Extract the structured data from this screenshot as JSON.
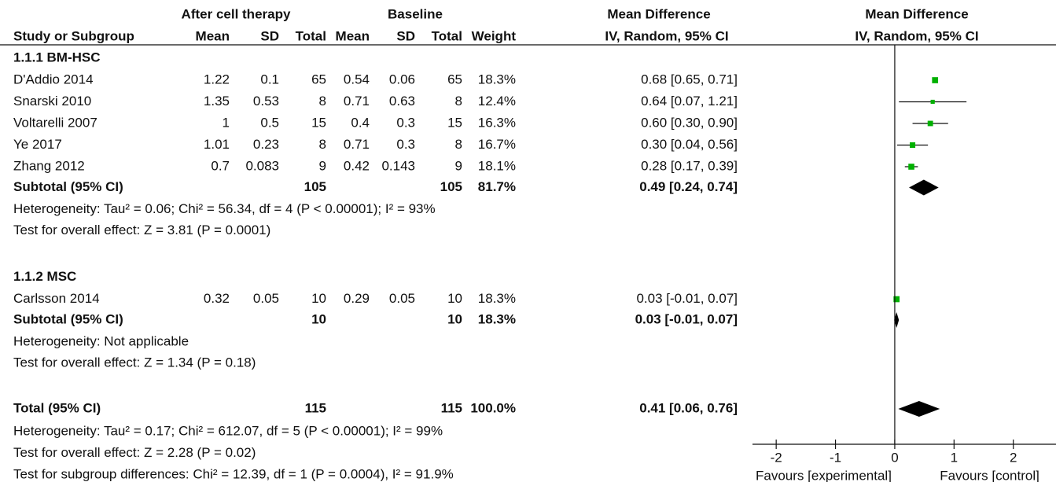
{
  "chart_data": {
    "type": "forest",
    "header_groups": [
      "After cell therapy",
      "Baseline",
      "Mean Difference",
      "Mean Difference"
    ],
    "columns": [
      "Study or Subgroup",
      "Mean",
      "SD",
      "Total",
      "Mean",
      "SD",
      "Total",
      "Weight",
      "IV, Random, 95% CI",
      "IV, Random, 95% CI"
    ],
    "groups": [
      {
        "name": "1.1.1 BM-HSC",
        "studies": [
          {
            "name": "D'Addio 2014",
            "exp_mean": 1.22,
            "exp_sd": 0.1,
            "exp_total": 65,
            "base_mean": 0.54,
            "base_sd": 0.06,
            "base_total": 65,
            "weight": 18.3,
            "weight_label": "18.3%",
            "md": 0.68,
            "ci": [
              0.65,
              0.71
            ],
            "ci_label": "0.68 [0.65, 0.71]"
          },
          {
            "name": "Snarski 2010",
            "exp_mean": 1.35,
            "exp_sd": 0.53,
            "exp_total": 8,
            "base_mean": 0.71,
            "base_sd": 0.63,
            "base_total": 8,
            "weight": 12.4,
            "weight_label": "12.4%",
            "md": 0.64,
            "ci": [
              0.07,
              1.21
            ],
            "ci_label": "0.64 [0.07, 1.21]"
          },
          {
            "name": "Voltarelli 2007",
            "exp_mean": 1,
            "exp_sd": 0.5,
            "exp_total": 15,
            "base_mean": 0.4,
            "base_sd": 0.3,
            "base_total": 15,
            "weight": 16.3,
            "weight_label": "16.3%",
            "md": 0.6,
            "ci": [
              0.3,
              0.9
            ],
            "ci_label": "0.60 [0.30, 0.90]"
          },
          {
            "name": "Ye 2017",
            "exp_mean": 1.01,
            "exp_sd": 0.23,
            "exp_total": 8,
            "base_mean": 0.71,
            "base_sd": 0.3,
            "base_total": 8,
            "weight": 16.7,
            "weight_label": "16.7%",
            "md": 0.3,
            "ci": [
              0.04,
              0.56
            ],
            "ci_label": "0.30 [0.04, 0.56]"
          },
          {
            "name": "Zhang 2012",
            "exp_mean": 0.7,
            "exp_sd": 0.083,
            "exp_total": 9,
            "base_mean": 0.42,
            "base_sd": 0.143,
            "base_total": 9,
            "weight": 18.1,
            "weight_label": "18.1%",
            "md": 0.28,
            "ci": [
              0.17,
              0.39
            ],
            "ci_label": "0.28 [0.17, 0.39]"
          }
        ],
        "subtotal": {
          "name": "Subtotal (95% CI)",
          "exp_total": 105,
          "base_total": 105,
          "weight": 81.7,
          "weight_label": "81.7%",
          "md": 0.49,
          "ci": [
            0.24,
            0.74
          ],
          "ci_label": "0.49 [0.24, 0.74]"
        },
        "notes": [
          "Heterogeneity: Tau² = 0.06; Chi² = 56.34, df = 4 (P < 0.00001); I² = 93%",
          "Test for overall effect: Z = 3.81 (P = 0.0001)"
        ]
      },
      {
        "name": "1.1.2 MSC",
        "studies": [
          {
            "name": "Carlsson 2014",
            "exp_mean": 0.32,
            "exp_sd": 0.05,
            "exp_total": 10,
            "base_mean": 0.29,
            "base_sd": 0.05,
            "base_total": 10,
            "weight": 18.3,
            "weight_label": "18.3%",
            "md": 0.03,
            "ci": [
              -0.01,
              0.07
            ],
            "ci_label": "0.03 [-0.01, 0.07]"
          }
        ],
        "subtotal": {
          "name": "Subtotal (95% CI)",
          "exp_total": 10,
          "base_total": 10,
          "weight": 18.3,
          "weight_label": "18.3%",
          "md": 0.03,
          "ci": [
            -0.01,
            0.07
          ],
          "ci_label": "0.03 [-0.01, 0.07]"
        },
        "notes": [
          "Heterogeneity: Not applicable",
          "Test for overall effect: Z = 1.34 (P = 0.18)"
        ]
      }
    ],
    "total": {
      "name": "Total (95% CI)",
      "exp_total": 115,
      "base_total": 115,
      "weight": 100,
      "weight_label": "100.0%",
      "md": 0.41,
      "ci": [
        0.06,
        0.76
      ],
      "ci_label": "0.41 [0.06, 0.76]"
    },
    "total_notes": [
      "Heterogeneity: Tau² = 0.17; Chi² = 612.07, df = 5 (P < 0.00001); I² = 99%",
      "Test for overall effect: Z = 2.28 (P = 0.02)",
      "Test for subgroup differences: Chi² = 12.39, df = 1 (P = 0.0004), I² = 91.9%"
    ],
    "xlim": [
      -2.4,
      2.72
    ],
    "xticks": [
      -2,
      -1,
      0,
      1,
      2
    ],
    "xlabels": [
      "Favours [experimental]",
      "Favours [control]"
    ],
    "study_color": "#00b000",
    "pooled_color": "#000000"
  }
}
